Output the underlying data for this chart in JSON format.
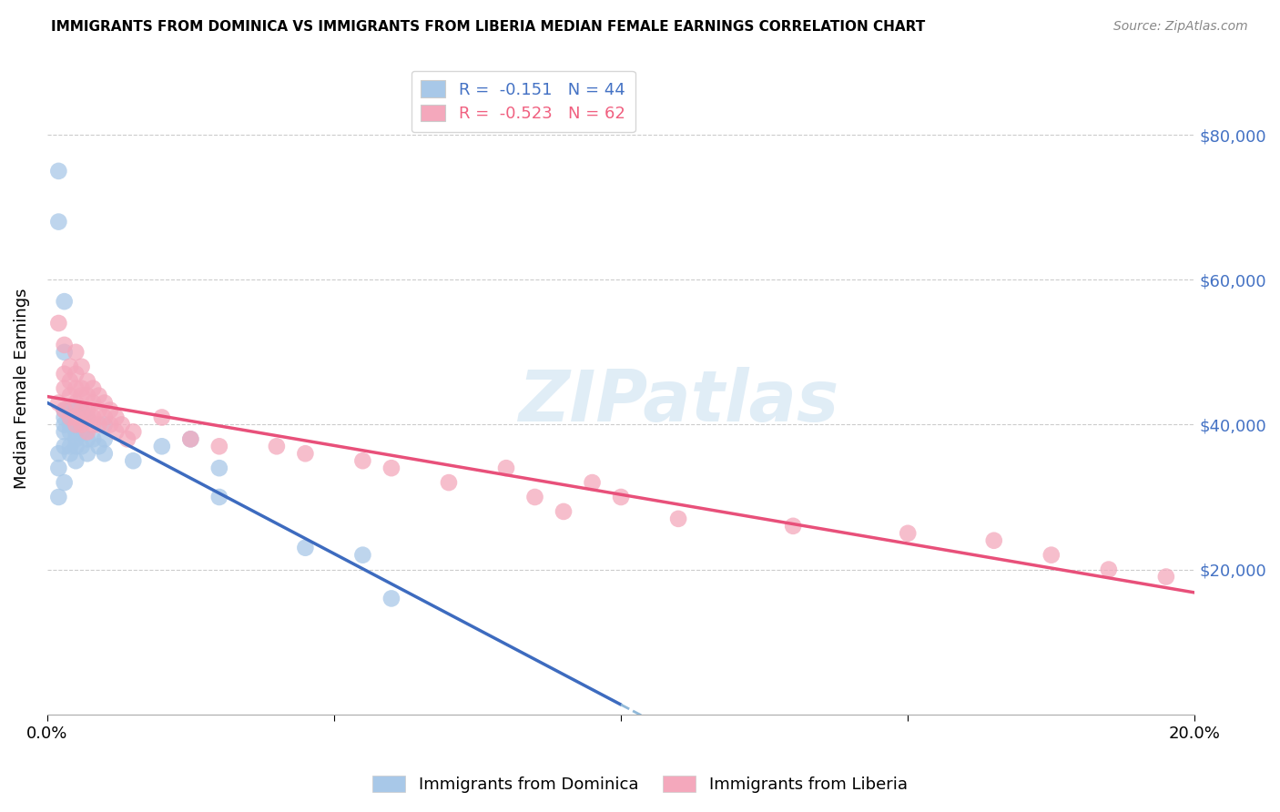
{
  "title": "IMMIGRANTS FROM DOMINICA VS IMMIGRANTS FROM LIBERIA MEDIAN FEMALE EARNINGS CORRELATION CHART",
  "source": "Source: ZipAtlas.com",
  "ylabel": "Median Female Earnings",
  "x_min": 0.0,
  "x_max": 0.2,
  "y_min": 0,
  "y_max": 90000,
  "yticks": [
    0,
    20000,
    40000,
    60000,
    80000
  ],
  "ytick_labels_right": [
    "",
    "$20,000",
    "$40,000",
    "$60,000",
    "$80,000"
  ],
  "xticks": [
    0.0,
    0.05,
    0.1,
    0.15,
    0.2
  ],
  "xtick_labels": [
    "0.0%",
    "",
    "",
    "",
    "20.0%"
  ],
  "dominica_color": "#a8c8e8",
  "liberia_color": "#f4a8bc",
  "dominica_line_color": "#3d6bbf",
  "liberia_line_color": "#e8507a",
  "dashed_line_color": "#90b8d8",
  "R_dominica": -0.151,
  "N_dominica": 44,
  "R_liberia": -0.523,
  "N_liberia": 62,
  "watermark_text": "ZIPatlas",
  "legend_label_1": "Immigrants from Dominica",
  "legend_label_2": "Immigrants from Liberia",
  "dominica_x": [
    0.002,
    0.002,
    0.002,
    0.002,
    0.002,
    0.003,
    0.003,
    0.003,
    0.003,
    0.003,
    0.003,
    0.003,
    0.003,
    0.004,
    0.004,
    0.004,
    0.004,
    0.004,
    0.004,
    0.005,
    0.005,
    0.005,
    0.005,
    0.005,
    0.005,
    0.006,
    0.006,
    0.006,
    0.007,
    0.007,
    0.007,
    0.008,
    0.009,
    0.01,
    0.01,
    0.01,
    0.015,
    0.02,
    0.025,
    0.03,
    0.03,
    0.045,
    0.055,
    0.06
  ],
  "dominica_y": [
    75000,
    68000,
    36000,
    34000,
    30000,
    57000,
    50000,
    42000,
    41000,
    40000,
    39000,
    37000,
    32000,
    42000,
    41000,
    40000,
    39000,
    37000,
    36000,
    42000,
    40000,
    39000,
    38000,
    37000,
    35000,
    42000,
    39000,
    37000,
    41000,
    38000,
    36000,
    38000,
    37000,
    40000,
    38000,
    36000,
    35000,
    37000,
    38000,
    34000,
    30000,
    23000,
    22000,
    16000
  ],
  "liberia_x": [
    0.002,
    0.002,
    0.003,
    0.003,
    0.003,
    0.003,
    0.004,
    0.004,
    0.004,
    0.004,
    0.005,
    0.005,
    0.005,
    0.005,
    0.005,
    0.005,
    0.006,
    0.006,
    0.006,
    0.006,
    0.006,
    0.007,
    0.007,
    0.007,
    0.007,
    0.007,
    0.008,
    0.008,
    0.008,
    0.008,
    0.009,
    0.009,
    0.009,
    0.01,
    0.01,
    0.011,
    0.011,
    0.012,
    0.012,
    0.013,
    0.014,
    0.015,
    0.02,
    0.025,
    0.03,
    0.04,
    0.045,
    0.055,
    0.06,
    0.07,
    0.08,
    0.085,
    0.09,
    0.095,
    0.1,
    0.11,
    0.13,
    0.15,
    0.165,
    0.175,
    0.185,
    0.195
  ],
  "liberia_y": [
    54000,
    43000,
    51000,
    47000,
    45000,
    42000,
    48000,
    46000,
    44000,
    41000,
    50000,
    47000,
    45000,
    43000,
    41000,
    40000,
    48000,
    45000,
    44000,
    42000,
    40000,
    46000,
    44000,
    42000,
    41000,
    39000,
    45000,
    43000,
    41000,
    40000,
    44000,
    42000,
    40000,
    43000,
    41000,
    42000,
    40000,
    41000,
    39000,
    40000,
    38000,
    39000,
    41000,
    38000,
    37000,
    37000,
    36000,
    35000,
    34000,
    32000,
    34000,
    30000,
    28000,
    32000,
    30000,
    27000,
    26000,
    25000,
    24000,
    22000,
    20000,
    19000
  ]
}
